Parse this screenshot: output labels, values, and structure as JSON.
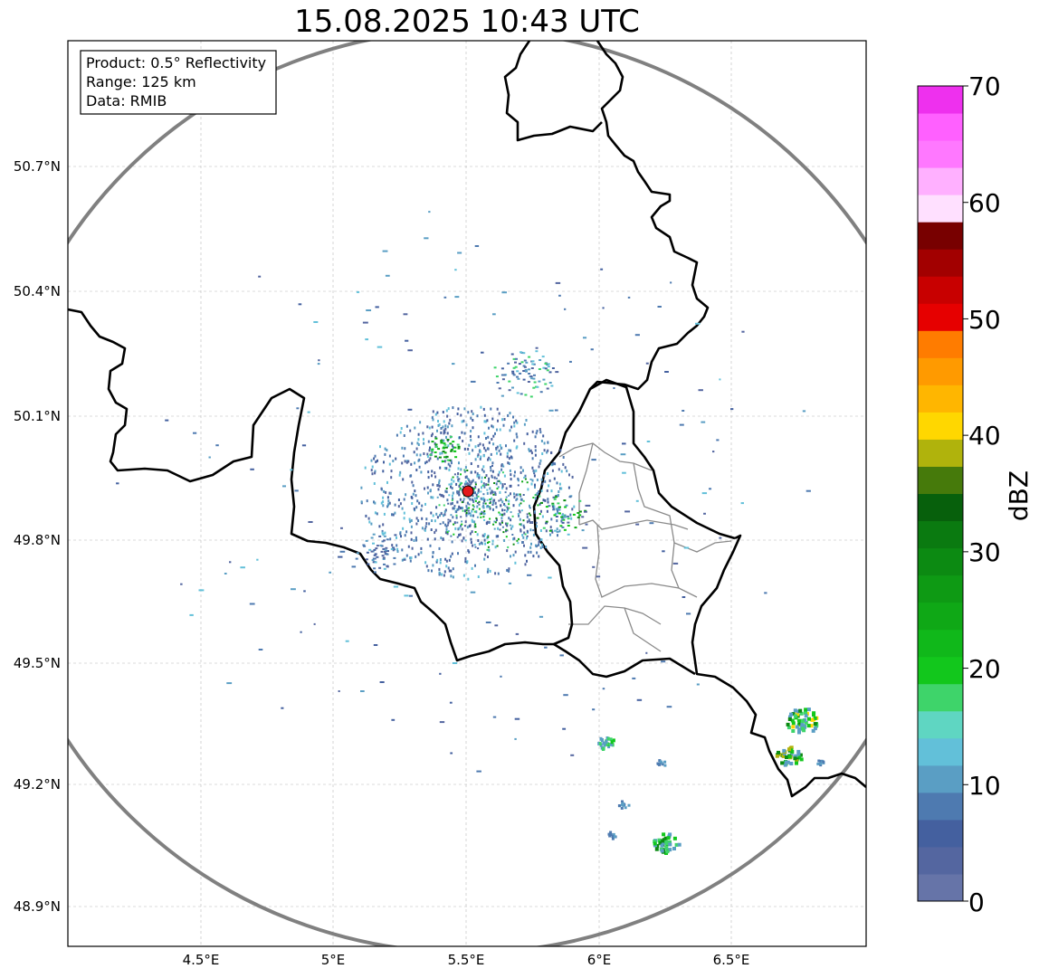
{
  "title": "15.08.2025 10:43 UTC",
  "info_box": {
    "product": "Product: 0.5° Reflectivity",
    "range": "Range: 125 km",
    "data": "Data: RMIB"
  },
  "map": {
    "lon_ticks": [
      "4.5°E",
      "5°E",
      "5.5°E",
      "6°E",
      "6.5°E"
    ],
    "lat_ticks": [
      "50.7°N",
      "50.4°N",
      "50.1°N",
      "49.8°N",
      "49.5°N",
      "49.2°N",
      "48.9°N"
    ],
    "radar_site_color": "#e31a1c",
    "range_ring_color": "#808080"
  },
  "colorbar": {
    "label": "dBZ",
    "ticks": [
      "0",
      "10",
      "20",
      "30",
      "40",
      "50",
      "60",
      "70"
    ],
    "range": [
      0,
      70
    ],
    "step": 2.5,
    "colors": [
      "#6674a8",
      "#5466a0",
      "#44609f",
      "#4e7ab0",
      "#5a9ec4",
      "#62c0d9",
      "#5fd6c2",
      "#3ed46a",
      "#12c71c",
      "#10b81a",
      "#0fa816",
      "#0e9a14",
      "#0c8a12",
      "#0a7a10",
      "#07600c",
      "#467a0b",
      "#b0b30c",
      "#ffd700",
      "#ffb600",
      "#ff9a00",
      "#ff7c00",
      "#e60000",
      "#c80000",
      "#a20000",
      "#780000",
      "#ffe0ff",
      "#ffb0ff",
      "#ff78ff",
      "#ff60ff",
      "#ee30ee"
    ]
  }
}
